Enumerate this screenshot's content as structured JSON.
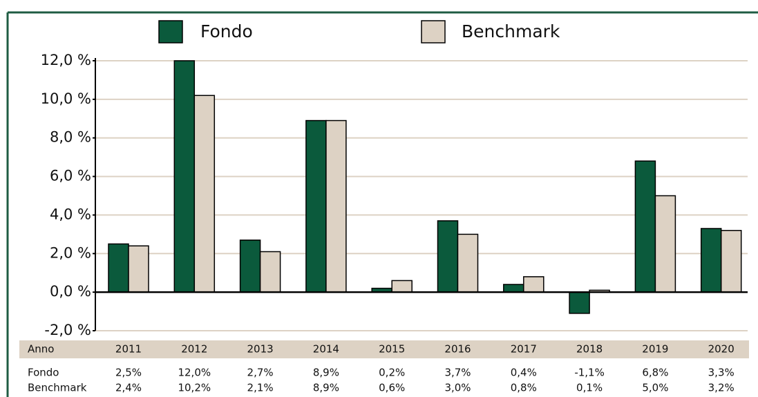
{
  "chart_data": {
    "type": "bar",
    "categories": [
      "2011",
      "2012",
      "2013",
      "2014",
      "2015",
      "2016",
      "2017",
      "2018",
      "2019",
      "2020"
    ],
    "x_label": "Anno",
    "series": [
      {
        "name": "Fondo",
        "color": "#0b5a3c",
        "values": [
          2.5,
          12.0,
          2.7,
          8.9,
          0.2,
          3.7,
          0.4,
          -1.1,
          6.8,
          3.3
        ],
        "value_labels": [
          "2,5%",
          "12,0%",
          "2,7%",
          "8,9%",
          "0,2%",
          "3,7%",
          "0,4%",
          "-1,1%",
          "6,8%",
          "3,3%"
        ]
      },
      {
        "name": "Benchmark",
        "color": "#ddd2c4",
        "values": [
          2.4,
          10.2,
          2.1,
          8.9,
          0.6,
          3.0,
          0.8,
          0.1,
          5.0,
          3.2
        ],
        "value_labels": [
          "2,4%",
          "10,2%",
          "2,1%",
          "8,9%",
          "0,6%",
          "3,0%",
          "0,8%",
          "0,1%",
          "5,0%",
          "3,2%"
        ]
      }
    ],
    "ylim": [
      -2,
      12
    ],
    "yticks": [
      {
        "value": -2,
        "label": "-2,0 %"
      },
      {
        "value": 0,
        "label": "0,0 %"
      },
      {
        "value": 2,
        "label": "2,0 %"
      },
      {
        "value": 4,
        "label": "4,0 %"
      },
      {
        "value": 6,
        "label": "6,0 %"
      },
      {
        "value": 8,
        "label": "8,0 %"
      },
      {
        "value": 10,
        "label": "10,0 %"
      },
      {
        "value": 12,
        "label": "12,0 %"
      }
    ],
    "grid": true
  }
}
